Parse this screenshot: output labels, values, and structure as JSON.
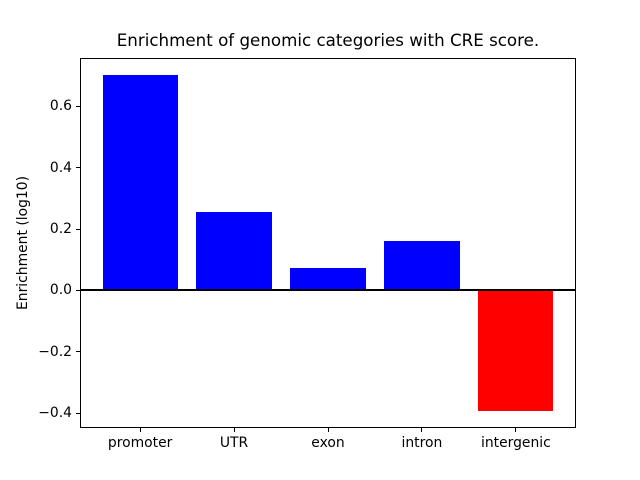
{
  "figure": {
    "background": "#ffffff"
  },
  "chart_data": {
    "type": "bar",
    "title": "Enrichment of genomic categories with CRE score.",
    "xlabel": "",
    "ylabel": "Enrichment (log10)",
    "categories": [
      "promoter",
      "UTR",
      "exon",
      "intron",
      "intergenic"
    ],
    "values": [
      0.702,
      0.256,
      0.072,
      0.162,
      -0.392
    ],
    "bar_colors": [
      "#0000ff",
      "#0000ff",
      "#0000ff",
      "#0000ff",
      "#ff0000"
    ],
    "positive_color": "#0000ff",
    "negative_color": "#ff0000",
    "yticks": [
      0.6,
      0.4,
      0.2,
      0.0,
      -0.2,
      -0.4
    ],
    "ytick_labels": [
      "0.6",
      "0.4",
      "0.2",
      "0.0",
      "−0.2",
      "−0.4"
    ],
    "ylim": [
      -0.448,
      0.757
    ],
    "grid": false,
    "legend": "none",
    "zero_line": true,
    "axis_color": "#000000",
    "text_color": "#000000"
  }
}
